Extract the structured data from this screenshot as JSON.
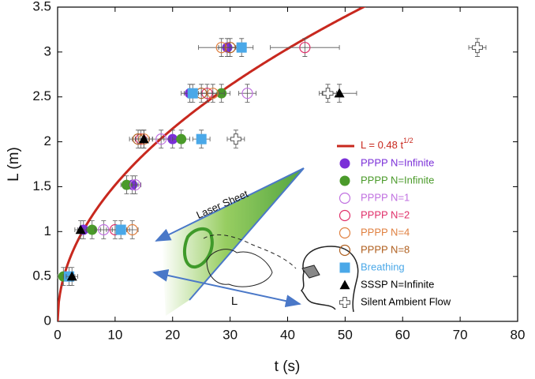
{
  "chart_data": {
    "type": "scatter",
    "x_label": "t (s)",
    "y_label": "L (m)",
    "xlim": [
      0,
      80
    ],
    "xticks": [
      0,
      10,
      20,
      30,
      40,
      50,
      60,
      70,
      80
    ],
    "ylim": [
      0,
      3.5
    ],
    "yticks": [
      0,
      0.5,
      1,
      1.5,
      2,
      2.5,
      3,
      3.5
    ],
    "grid": false,
    "legend_position": "right",
    "curve": {
      "label": "L = 0.48 t",
      "label_sup": "1/2",
      "coefficient": 0.48,
      "exponent": 0.5,
      "color": "#c8281e"
    },
    "series": [
      {
        "name": "PPPP N=Infinite",
        "marker": "circle",
        "color": "#7b30d8",
        "x": [
          29.5,
          23,
          20,
          13,
          4.5
        ],
        "values": [
          3.05,
          2.54,
          2.03,
          1.52,
          1.02
        ],
        "xerr": [
          1.5,
          1.5,
          1.5,
          1,
          1
        ],
        "yerr": [
          0.1,
          0.1,
          0.1,
          0.1,
          0.1
        ]
      },
      {
        "name": "PPPP N=Infinite",
        "marker": "circle",
        "color": "#4a9a2a",
        "x": [
          28.5,
          21.5,
          12,
          6,
          1
        ],
        "values": [
          2.54,
          2.03,
          1.52,
          1.02,
          0.5
        ],
        "xerr": [
          1.5,
          1.5,
          1,
          1.5,
          1
        ],
        "yerr": [
          0.1,
          0.1,
          0.1,
          0.1,
          0.1
        ]
      },
      {
        "name": "PPPP N=1",
        "marker": "open-circle",
        "color": "#c070e0",
        "x": [
          33,
          18,
          13.5,
          8
        ],
        "values": [
          2.54,
          2.03,
          1.52,
          1.02
        ],
        "xerr": [
          1.5,
          1.5,
          1,
          1.5
        ],
        "yerr": [
          0.1,
          0.1,
          0.1,
          0.1
        ]
      },
      {
        "name": "PPPP N=2",
        "marker": "open-circle",
        "color": "#e0306a",
        "x": [
          43,
          26,
          14.5,
          10
        ],
        "values": [
          3.05,
          2.54,
          2.03,
          1.02
        ],
        "xerr": [
          6,
          2,
          1.5,
          1.5
        ],
        "yerr": [
          0.1,
          0.1,
          0.1,
          0.1
        ]
      },
      {
        "name": "PPPP N=4",
        "marker": "open-circle",
        "color": "#e08040",
        "x": [
          28.5,
          27,
          15,
          13
        ],
        "values": [
          3.05,
          2.54,
          2.03,
          1.02
        ],
        "xerr": [
          4,
          2,
          1.5,
          1
        ],
        "yerr": [
          0.1,
          0.1,
          0.1,
          0.1
        ]
      },
      {
        "name": "PPPP N=8",
        "marker": "open-circle",
        "color": "#b06020",
        "x": [
          30,
          25,
          14
        ],
        "values": [
          3.05,
          2.54,
          2.03
        ],
        "xerr": [
          2,
          2,
          1.5
        ],
        "yerr": [
          0.1,
          0.1,
          0.1
        ]
      },
      {
        "name": "Breathing",
        "marker": "square",
        "color": "#4aa8e8",
        "x": [
          32,
          23.5,
          25,
          11,
          2
        ],
        "values": [
          3.05,
          2.54,
          2.03,
          1.02,
          0.5
        ],
        "xerr": [
          2,
          1.5,
          1.5,
          1.5,
          1
        ],
        "yerr": [
          0.1,
          0.1,
          0.1,
          0.1,
          0.1
        ]
      },
      {
        "name": "SSSP N=Infinite",
        "marker": "triangle",
        "color": "#000000",
        "x": [
          49,
          15,
          4,
          2.5
        ],
        "values": [
          2.54,
          2.03,
          1.02,
          0.5
        ],
        "xerr": [
          3,
          1.5,
          1,
          1
        ],
        "yerr": [
          0.1,
          0.1,
          0.1,
          0.1
        ]
      },
      {
        "name": "Silent Ambient Flow",
        "marker": "open-cross",
        "color": "#555555",
        "x": [
          73,
          47,
          31
        ],
        "values": [
          3.05,
          2.54,
          2.03
        ],
        "xerr": [
          1.5,
          1.5,
          1.5
        ],
        "yerr": [
          0.1,
          0.1,
          0.1
        ]
      }
    ],
    "annotations": [
      "Laser Sheet",
      "L"
    ]
  }
}
